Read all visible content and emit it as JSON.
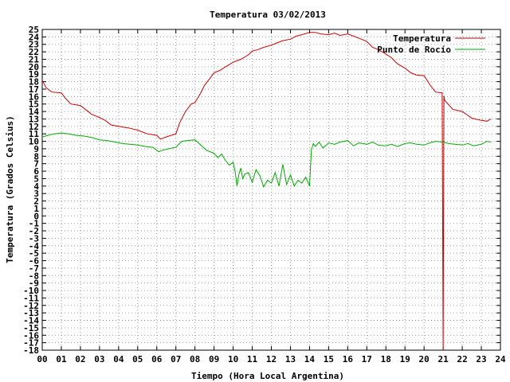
{
  "chart_data": {
    "type": "line",
    "title": "Temperatura 03/02/2013",
    "xlabel": "Tiempo (Hora Local Argentina)",
    "ylabel": "Temperatura (Grados Celsius)",
    "xlim": [
      0,
      24
    ],
    "ylim": [
      -18,
      25
    ],
    "x_ticks": [
      "00",
      "01",
      "02",
      "03",
      "04",
      "05",
      "06",
      "07",
      "08",
      "09",
      "10",
      "11",
      "12",
      "13",
      "14",
      "15",
      "16",
      "17",
      "18",
      "19",
      "20",
      "21",
      "22",
      "23",
      "24"
    ],
    "y_ticks": [
      25,
      24,
      23,
      22,
      21,
      20,
      19,
      18,
      17,
      16,
      15,
      14,
      13,
      12,
      11,
      10,
      9,
      8,
      7,
      6,
      5,
      4,
      3,
      2,
      1,
      0,
      -1,
      -2,
      -3,
      -4,
      -5,
      -6,
      -7,
      -8,
      -9,
      -10,
      -11,
      -12,
      -13,
      -14,
      -15,
      -16,
      -17,
      -18
    ],
    "grid": true,
    "legend_position": "top-right",
    "series": [
      {
        "name": "Temperatura",
        "color": "#cc0000",
        "x": [
          0,
          0.2,
          0.5,
          1,
          1.2,
          1.5,
          2,
          2.3,
          2.6,
          3,
          3.3,
          3.6,
          4,
          4.5,
          5,
          5.5,
          6,
          6.2,
          6.5,
          7,
          7.2,
          7.5,
          7.8,
          8,
          8.3,
          8.5,
          8.8,
          9,
          9.3,
          9.6,
          10,
          10.4,
          10.8,
          11,
          11.3,
          11.6,
          12,
          12.3,
          12.6,
          13,
          13.3,
          13.6,
          14,
          14.3,
          14.6,
          15,
          15.3,
          15.6,
          16,
          16.3,
          16.6,
          17,
          17.3,
          17.6,
          18,
          18.3,
          18.6,
          19,
          19.3,
          19.6,
          20,
          20.3,
          20.6,
          20.95,
          21.0,
          21.04,
          21.08,
          21.5,
          22,
          22.5,
          23,
          23.3,
          23.5
        ],
        "values": [
          18.2,
          17.2,
          16.6,
          16.5,
          15.8,
          15,
          14.8,
          14.2,
          13.6,
          13.2,
          12.8,
          12.2,
          12,
          11.8,
          11.5,
          11,
          10.8,
          10.3,
          10.6,
          11,
          12.5,
          14,
          15,
          15.2,
          16.5,
          17.5,
          18.5,
          19.2,
          19.5,
          20,
          20.6,
          21,
          21.6,
          22.1,
          22.3,
          22.6,
          22.9,
          23.2,
          23.5,
          23.7,
          24.1,
          24.3,
          24.6,
          24.6,
          24.4,
          24.3,
          24.5,
          24.2,
          24.4,
          24.1,
          23.8,
          23.4,
          22.6,
          22.3,
          21.7,
          21.2,
          20.4,
          19.8,
          19.2,
          18.9,
          18.8,
          17.6,
          16.6,
          16.5,
          -18,
          16.1,
          15.5,
          14.3,
          14,
          13.1,
          12.8,
          12.7,
          13
        ]
      },
      {
        "name": "Punto de Rocío",
        "color": "#00aa00",
        "x": [
          0,
          0.3,
          0.6,
          1,
          1.4,
          1.8,
          2.2,
          2.6,
          3,
          3.4,
          3.8,
          4.2,
          4.6,
          5,
          5.4,
          5.8,
          6.1,
          6.3,
          6.6,
          7,
          7.3,
          7.6,
          8,
          8.3,
          8.6,
          9,
          9.2,
          9.4,
          9.6,
          9.8,
          10,
          10.1,
          10.2,
          10.3,
          10.4,
          10.5,
          10.6,
          10.8,
          11,
          11.2,
          11.4,
          11.6,
          11.8,
          12,
          12.2,
          12.4,
          12.6,
          12.8,
          13,
          13.2,
          13.4,
          13.6,
          13.8,
          14,
          14.1,
          14.2,
          14.3,
          14.5,
          14.7,
          15,
          15.3,
          15.6,
          16,
          16.3,
          16.6,
          17,
          17.3,
          17.6,
          18,
          18.3,
          18.6,
          19,
          19.3,
          19.6,
          20,
          20.3,
          20.6,
          21,
          21.3,
          21.6,
          22,
          22.3,
          22.6,
          23,
          23.3,
          23.5
        ],
        "values": [
          10.6,
          10.8,
          11,
          11.1,
          11,
          10.8,
          10.7,
          10.5,
          10.2,
          10.1,
          9.9,
          9.7,
          9.6,
          9.5,
          9.3,
          9.2,
          8.6,
          8.8,
          9,
          9.2,
          10,
          10.1,
          10.2,
          9.5,
          8.8,
          8.4,
          7.8,
          8.3,
          7.4,
          6.8,
          7.2,
          6.0,
          4.0,
          5.6,
          6.4,
          5.0,
          5.6,
          5.8,
          4.5,
          6.2,
          5.4,
          3.9,
          4.8,
          4.4,
          5.8,
          4.0,
          6.9,
          4.2,
          5.5,
          4.0,
          4.8,
          4.4,
          5.2,
          4.0,
          8.9,
          9.7,
          9.3,
          9.9,
          9.1,
          9.8,
          9.6,
          9.9,
          10.1,
          9.4,
          9.8,
          9.6,
          9.9,
          9.5,
          9.4,
          9.6,
          9.3,
          9.7,
          9.8,
          9.6,
          9.5,
          9.8,
          10.0,
          9.9,
          9.7,
          9.6,
          9.5,
          9.7,
          9.4,
          9.6,
          10.0,
          9.9
        ]
      }
    ]
  }
}
